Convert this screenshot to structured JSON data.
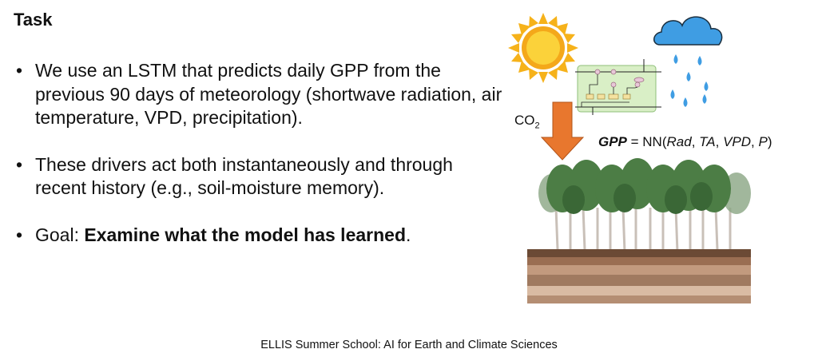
{
  "slide": {
    "title": "Task",
    "bullets": [
      {
        "parts": [
          {
            "text": "We use an LSTM that predicts daily GPP from the previous 90 days of meteorology (shortwave radiation, air temperature, VPD, precipitation).",
            "bold": false
          }
        ]
      },
      {
        "parts": [
          {
            "text": "These drivers act both instantaneously and through recent history (e.g., soil-moisture memory).",
            "bold": false
          }
        ]
      },
      {
        "parts": [
          {
            "text": "Goal: ",
            "bold": false
          },
          {
            "text": "Examine what the model has learned",
            "bold": true
          },
          {
            "text": ".",
            "bold": false
          }
        ]
      }
    ],
    "bullet_symbol": "•",
    "footer": "ELLIS Summer School: AI for Earth and Climate Sciences"
  },
  "figure": {
    "co2_label": "CO",
    "co2_subscript": "2",
    "equation": {
      "lhs": "GPP",
      "op": " = NN(",
      "vars": [
        "Rad",
        "TA",
        "VPD",
        "P"
      ],
      "sep": ", ",
      "close": ")"
    },
    "icons": [
      "sun-icon",
      "cloud-icon",
      "rain-drops-icon",
      "lstm-cell-diagram",
      "down-arrow-icon",
      "forest-icon",
      "soil-layers-icon"
    ],
    "colors": {
      "sun": "#f6b21a",
      "cloud": "#3f9de3",
      "arrow": "#e8772e",
      "lstm_bg": "#d9efc6",
      "tree_canopy": "#4c7d45",
      "soil_top": "#6b4a35"
    }
  }
}
